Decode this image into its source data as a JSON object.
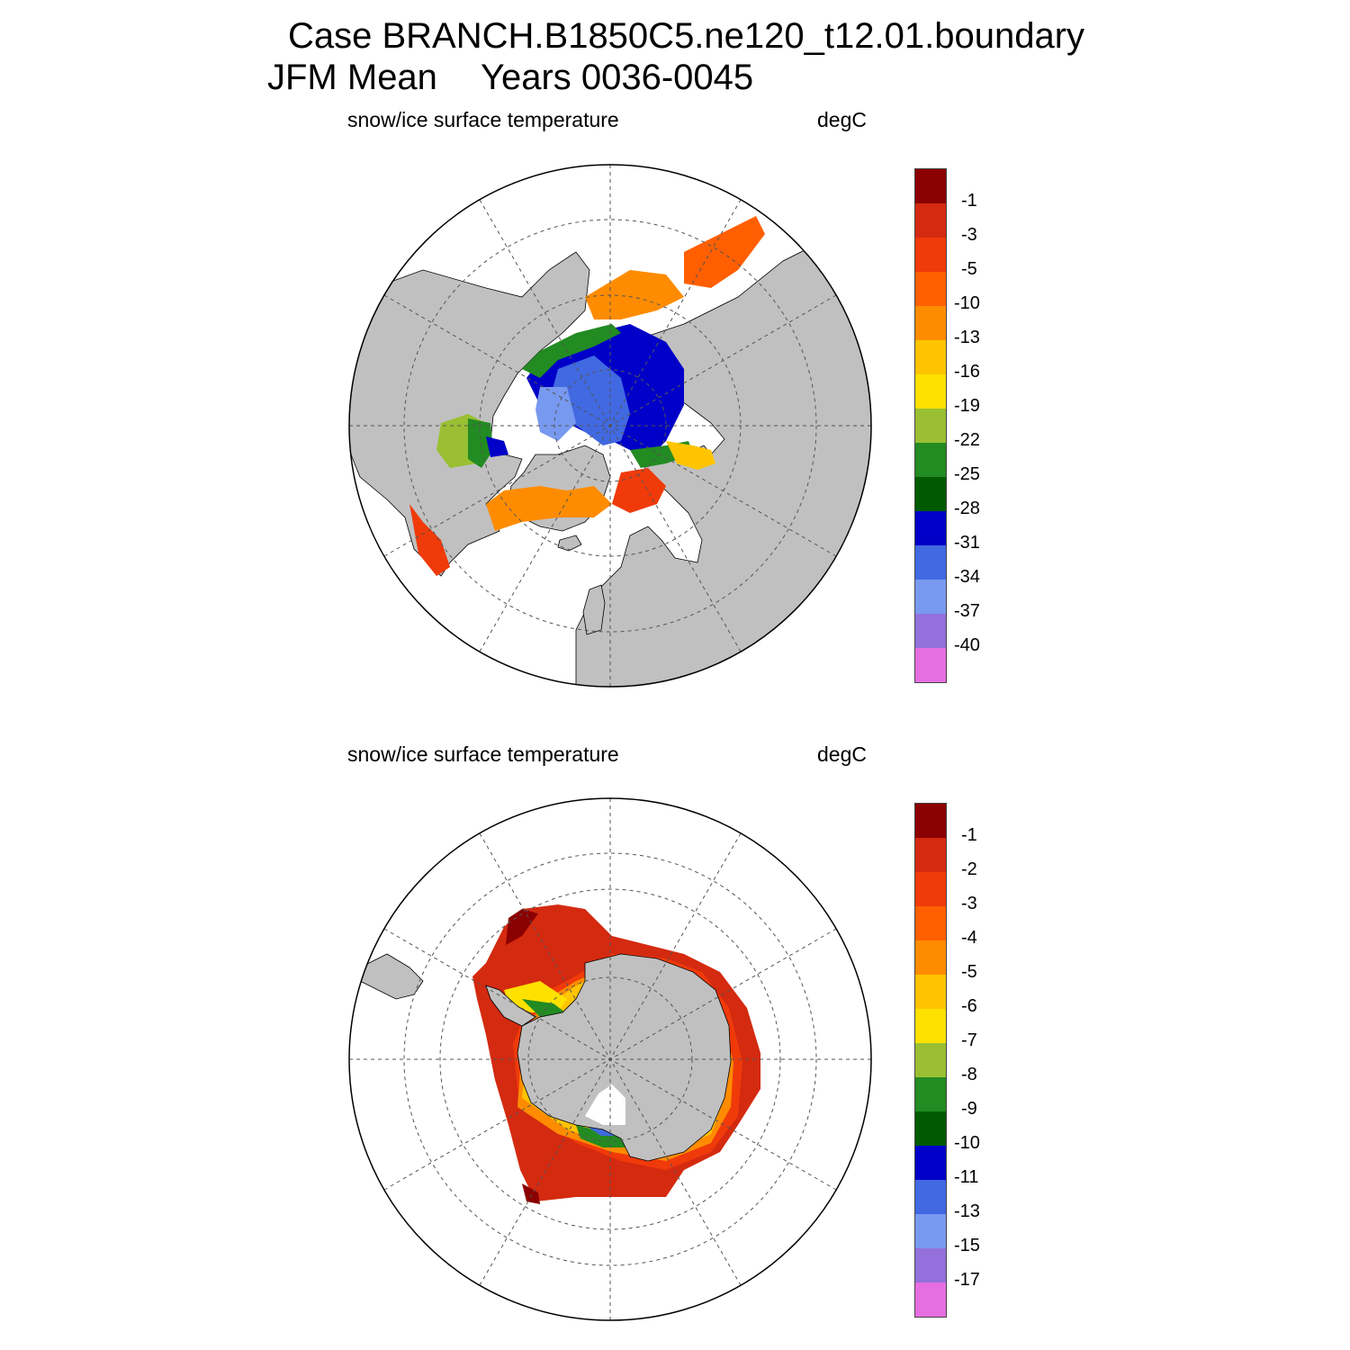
{
  "title": {
    "case": "Case BRANCH.B1850C5.ne120_t12.01.boundary",
    "season": "JFM Mean",
    "years": "Years 0036-0045"
  },
  "panels": [
    {
      "id": "nh",
      "variable": "snow/ice surface temperature",
      "units": "degC",
      "colorbar": {
        "labels": [
          "-1",
          "-3",
          "-5",
          "-10",
          "-13",
          "-16",
          "-19",
          "-22",
          "-25",
          "-28",
          "-31",
          "-34",
          "-37",
          "-40"
        ],
        "colors": [
          "#8b0000",
          "#d42a10",
          "#f03a0a",
          "#ff5f00",
          "#ff8c00",
          "#ffc400",
          "#ffe100",
          "#9abf32",
          "#228b22",
          "#005a00",
          "#0000c8",
          "#4169e1",
          "#7899f0",
          "#9370db",
          "#e66ee0"
        ]
      }
    },
    {
      "id": "sh",
      "variable": "snow/ice surface temperature",
      "units": "degC",
      "colorbar": {
        "labels": [
          "-1",
          "-2",
          "-3",
          "-4",
          "-5",
          "-6",
          "-7",
          "-8",
          "-9",
          "-10",
          "-11",
          "-13",
          "-15",
          "-17"
        ],
        "colors": [
          "#8b0000",
          "#d42a10",
          "#f03a0a",
          "#ff5f00",
          "#ff8c00",
          "#ffc400",
          "#ffe100",
          "#9abf32",
          "#228b22",
          "#005a00",
          "#0000c8",
          "#4169e1",
          "#7899f0",
          "#9370db",
          "#e66ee0"
        ]
      }
    }
  ],
  "style": {
    "land": "#c0c0c0",
    "ocean": "#ffffff",
    "grid": "#555555"
  }
}
